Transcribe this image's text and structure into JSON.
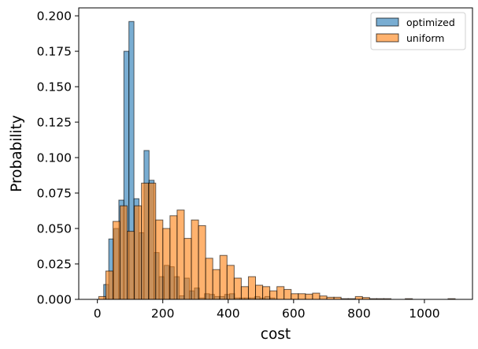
{
  "chart_data": {
    "type": "histogram",
    "title": "",
    "xlabel": "cost",
    "ylabel": "Probability",
    "xlim": [
      -57,
      1147
    ],
    "ylim": [
      0,
      0.2056
    ],
    "xticks": [
      0,
      200,
      400,
      600,
      800,
      1000
    ],
    "xtick_labels": [
      "0",
      "200",
      "400",
      "600",
      "800",
      "1000"
    ],
    "yticks": [
      0,
      0.025,
      0.05,
      0.075,
      0.1,
      0.125,
      0.15,
      0.175,
      0.2
    ],
    "ytick_labels": [
      "0.000",
      "0.025",
      "0.050",
      "0.075",
      "0.100",
      "0.125",
      "0.150",
      "0.175",
      "0.200"
    ],
    "grid": false,
    "legend_placement": "top-right",
    "series": [
      {
        "name": "optimized",
        "color": "#1f77b4",
        "alpha": 0.6,
        "bin_start": 19.4,
        "bin_width": 15.4,
        "values": [
          0.0105,
          0.0426,
          0.05,
          0.07,
          0.175,
          0.196,
          0.071,
          0.047,
          0.105,
          0.084,
          0.033,
          0.016,
          0.024,
          0.023,
          0.016,
          0.0025,
          0.015,
          0.006,
          0.008,
          0.001,
          0.004,
          0.0035,
          0.002,
          0.002,
          0.0035,
          0.004,
          0.001,
          0.001,
          0.001,
          0.001,
          0.002,
          0.001,
          0.002,
          0.001
        ]
      },
      {
        "name": "uniform",
        "color": "#ff7f0e",
        "alpha": 0.6,
        "bin_start": 4,
        "bin_width": 21.8,
        "values": [
          0.002,
          0.02,
          0.055,
          0.066,
          0.048,
          0.066,
          0.082,
          0.082,
          0.056,
          0.05,
          0.059,
          0.063,
          0.043,
          0.056,
          0.052,
          0.029,
          0.021,
          0.031,
          0.024,
          0.015,
          0.009,
          0.016,
          0.01,
          0.009,
          0.006,
          0.009,
          0.007,
          0.004,
          0.004,
          0.0037,
          0.0044,
          0.0024,
          0.0015,
          0.0015,
          0.0005,
          0.0005,
          0.002,
          0.0013,
          0.0005,
          0.0005,
          0.0005,
          0,
          0,
          0.0005,
          0,
          0,
          0,
          0,
          0,
          0.0005
        ]
      }
    ]
  }
}
